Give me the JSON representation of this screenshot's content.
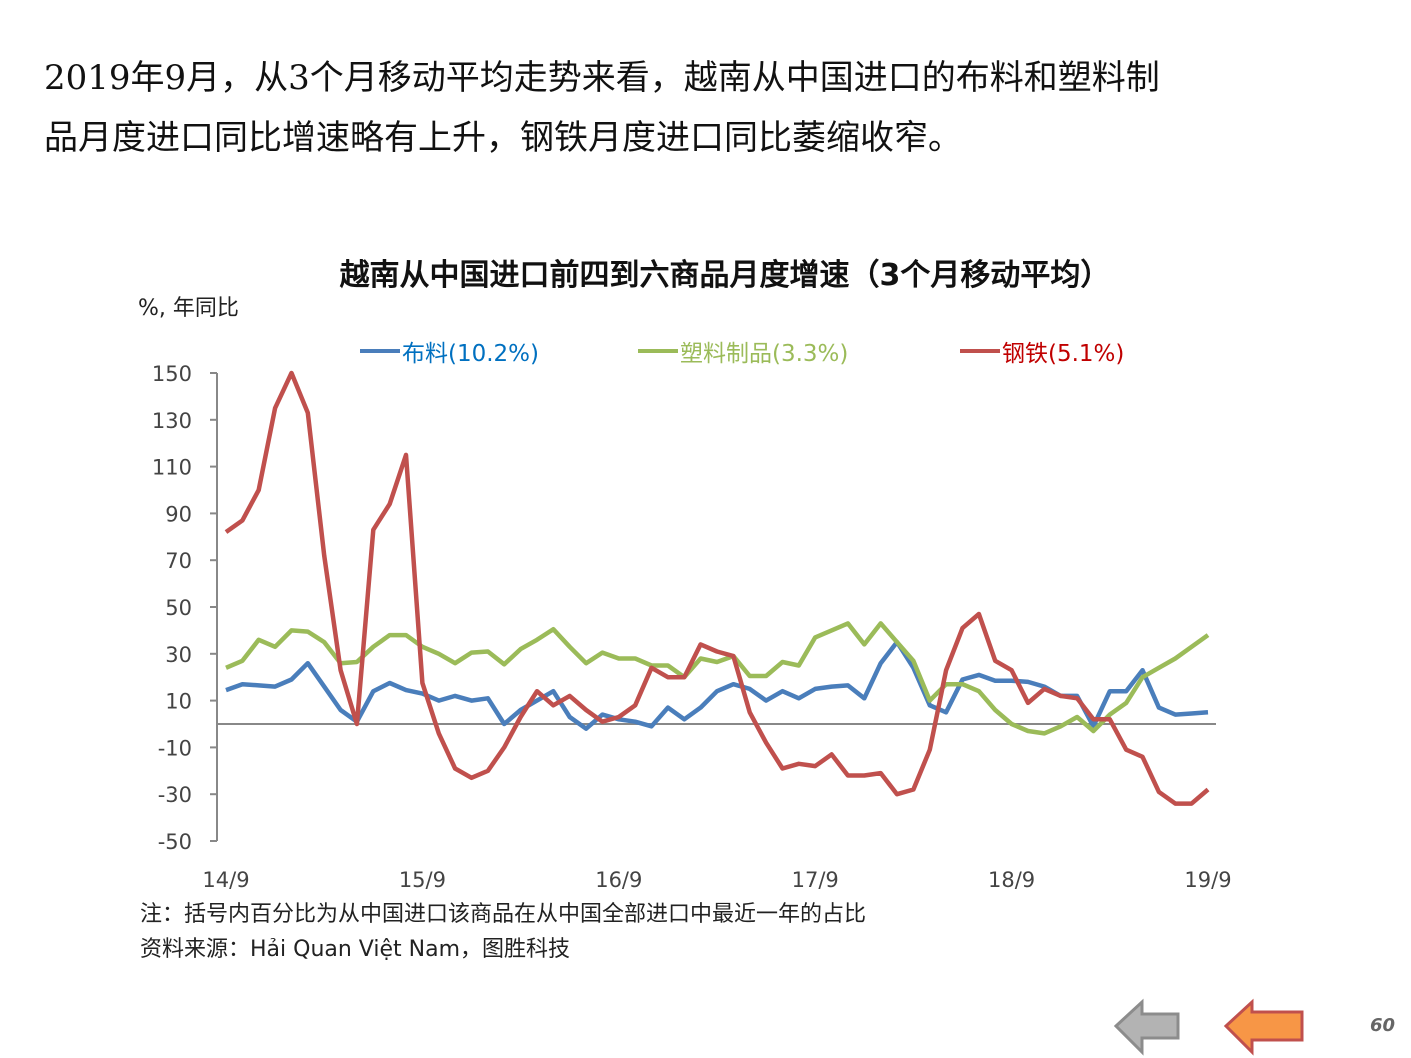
{
  "heading": {
    "line1": "2019年9月，从3个月移动平均走势来看，越南从中国进口的布料和塑料制",
    "line2": "品月度进口同比增速略有上升，钢铁月度进口同比萎缩收窄。"
  },
  "chart_data": {
    "type": "line",
    "title": "越南从中国进口前四到六商品月度增速（3个月移动平均）",
    "ylabel": "%, 年同比",
    "xlabel": "",
    "ylim": [
      -50,
      150
    ],
    "yticks": [
      150,
      130,
      110,
      90,
      70,
      50,
      30,
      10,
      -10,
      -30,
      -50
    ],
    "xtick_labels": [
      "14/9",
      "15/9",
      "16/9",
      "17/9",
      "18/9",
      "19/9"
    ],
    "x_start": "2014/9",
    "x_end": "2019/9",
    "grid": false,
    "legend_position": "top",
    "series": [
      {
        "name": "布料(10.2%)",
        "color": "#4a7ebb",
        "values": [
          14.5,
          17,
          16.5,
          16,
          19,
          26,
          16,
          6,
          1,
          14,
          17.5,
          14.5,
          13,
          10,
          12,
          10,
          11,
          0,
          6,
          10,
          14,
          3,
          -2,
          4,
          2,
          1,
          -1,
          7,
          2,
          7,
          14,
          17,
          15,
          10,
          14,
          11,
          15,
          16,
          16.5,
          11,
          26,
          35,
          24,
          8,
          5,
          19,
          21,
          18.5,
          18.5,
          18,
          16,
          12,
          12,
          -1,
          14,
          14,
          23,
          7,
          4,
          4.5,
          5
        ]
      },
      {
        "name": "塑料制品(3.3%)",
        "color": "#9bbb59",
        "values": [
          24,
          27,
          36,
          33,
          40,
          39.5,
          35,
          26,
          26.5,
          33,
          38,
          38,
          33,
          30,
          26,
          30.5,
          31,
          25.5,
          32,
          36,
          40.5,
          33,
          26,
          30.5,
          28,
          28,
          25,
          25,
          20,
          28,
          26.5,
          29,
          20.5,
          20.5,
          26.5,
          25,
          37,
          40,
          43,
          34,
          43,
          35,
          27,
          10,
          17,
          17,
          14,
          6,
          0,
          -3,
          -4,
          -1,
          3,
          -3,
          4,
          9,
          20,
          24,
          28,
          33,
          38
        ]
      },
      {
        "name": "钢铁(5.1%)",
        "color": "#c0504d",
        "values": [
          82,
          87,
          100,
          135,
          150,
          133,
          72,
          23,
          0,
          83,
          94,
          115,
          17.5,
          -4,
          -19,
          -23,
          -20,
          -10,
          3,
          14,
          8,
          12,
          6,
          1,
          3,
          8,
          24,
          20,
          20,
          34,
          31,
          29,
          5,
          -8,
          -19,
          -17,
          -18,
          -13,
          -22,
          -22,
          -21,
          -30,
          -28,
          -11,
          23,
          41,
          47,
          27,
          23,
          9,
          15,
          12,
          11,
          2,
          2,
          -11,
          -14,
          -29,
          -34,
          -34,
          -28
        ]
      }
    ]
  },
  "legend_text_colors": [
    "#0070c0",
    "#9bbb59",
    "#c00000"
  ],
  "notes": {
    "note": "注：括号内百分比为从中国进口该商品在从中国全部进口中最近一年的占比",
    "source": "资料来源：Hải Quan Việt Nam，图胜科技"
  },
  "page_number": "60"
}
